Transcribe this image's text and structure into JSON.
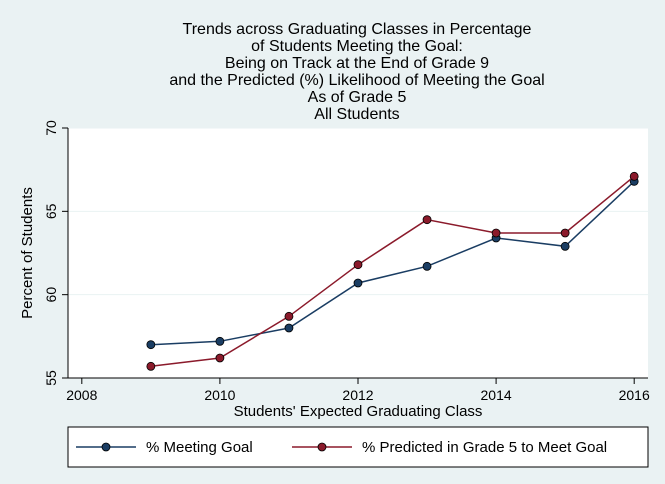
{
  "chart_data": {
    "type": "line",
    "title": [
      "Trends across Graduating Classes in Percentage",
      "of Students Meeting the Goal:",
      "Being on Track at the End of Grade 9",
      "and the Predicted (%) Likelihood of Meeting the Goal",
      "As of Grade 5",
      "All Students"
    ],
    "xlabel": "Students' Expected Graduating Class",
    "ylabel": "Percent of Students",
    "xlim": [
      2007.8,
      2016.2
    ],
    "ylim": [
      55,
      70
    ],
    "x_ticks": [
      2008,
      2010,
      2012,
      2014,
      2016
    ],
    "y_ticks": [
      55,
      60,
      65,
      70
    ],
    "grid": "horizontal",
    "legend_position": "bottom",
    "x": [
      2009,
      2010,
      2011,
      2012,
      2013,
      2014,
      2015,
      2016
    ],
    "series": [
      {
        "name": "% Meeting Goal",
        "color": "#1a3d63",
        "values": [
          57.0,
          57.2,
          58.0,
          60.7,
          61.7,
          63.4,
          62.9,
          66.8
        ]
      },
      {
        "name": "% Predicted in Grade 5 to Meet Goal",
        "color": "#8b1a2b",
        "values": [
          55.7,
          56.2,
          58.7,
          61.8,
          64.5,
          63.7,
          63.7,
          67.1
        ]
      }
    ]
  },
  "colors": {
    "background": "#eaf2f3",
    "plot_area": "#ffffff",
    "gridline": "#eaf2f3",
    "axis": "#000000"
  }
}
